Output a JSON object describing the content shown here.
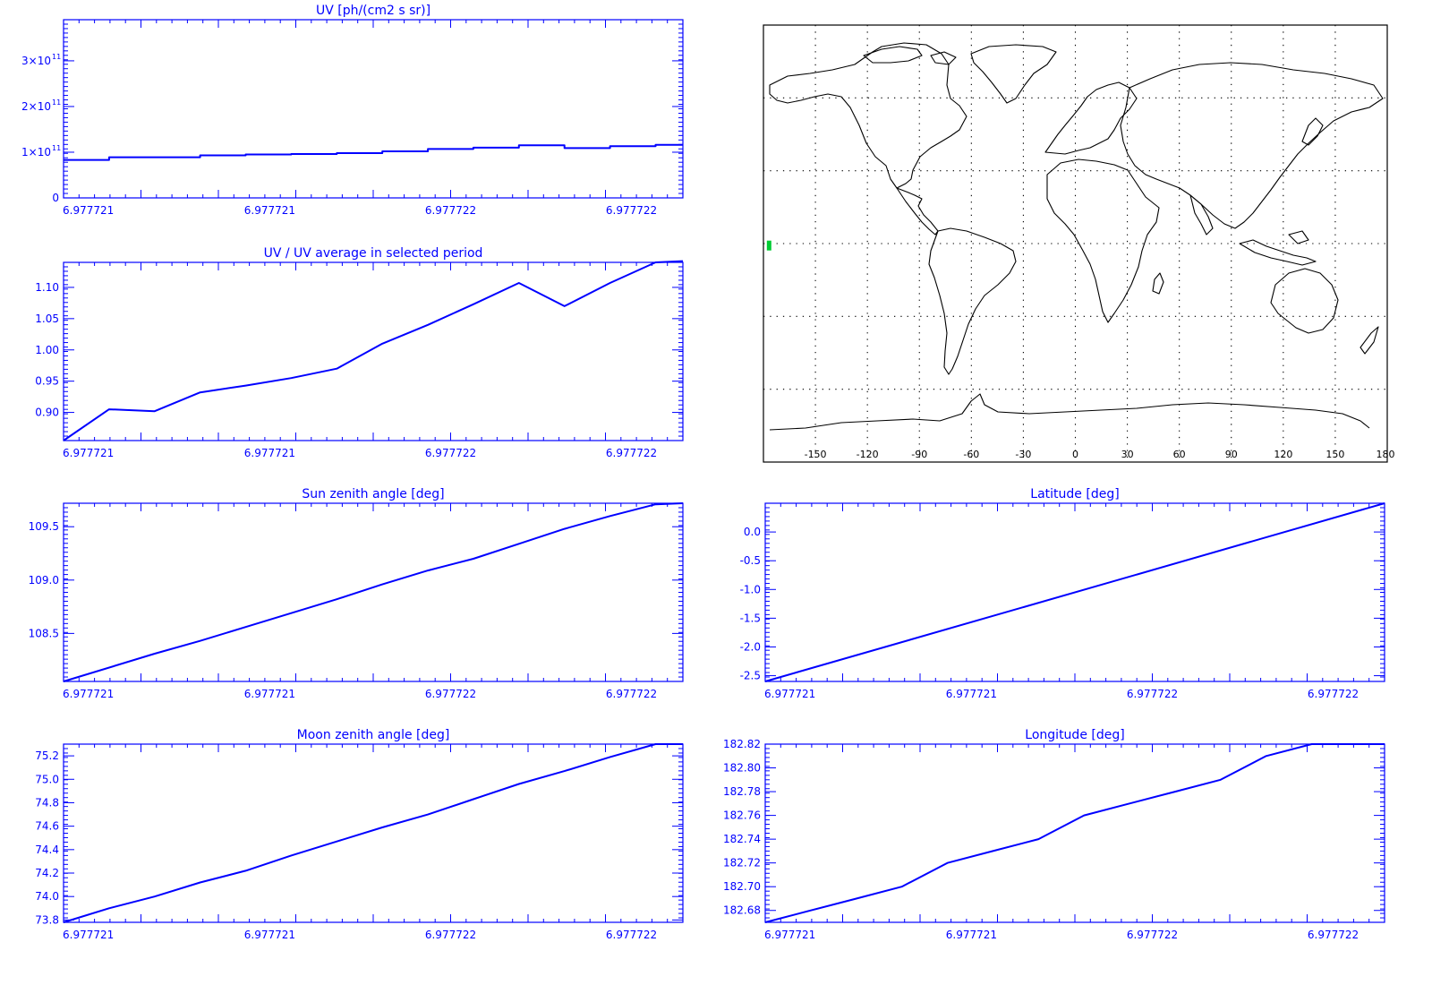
{
  "chart_data": [
    {
      "id": "uv",
      "type": "line",
      "step": true,
      "title": "UV [ph/(cm2 s sr)]",
      "x": [
        0,
        0.5,
        1,
        1.5,
        2,
        2.5,
        3,
        3.5,
        4,
        4.5,
        5,
        5.5,
        6,
        6.5
      ],
      "values": [
        83000000000.0,
        89000000000.0,
        89000000000.0,
        93000000000.0,
        95000000000.0,
        96000000000.0,
        98000000000.0,
        102000000000.0,
        107000000000.0,
        110000000000.0,
        115000000000.0,
        109000000000.0,
        113000000000.0,
        116000000000.0
      ],
      "xlim": [
        0,
        6.8
      ],
      "ylim": [
        0,
        390000000000.0
      ],
      "yticks": [
        {
          "value": 0,
          "label": "0"
        },
        {
          "value": 100000000000.0,
          "label": "1×10",
          "exp": "11"
        },
        {
          "value": 200000000000.0,
          "label": "2×10",
          "exp": "11"
        },
        {
          "value": 300000000000.0,
          "label": "3×10",
          "exp": "11"
        }
      ],
      "xtick_labels": [
        "6.977721",
        "6.977721",
        "6.977722",
        "6.977722"
      ]
    },
    {
      "id": "uv-ratio",
      "type": "line",
      "title": "UV / UV average in selected period",
      "x": [
        0,
        0.5,
        1,
        1.5,
        2,
        2.5,
        3,
        3.5,
        4,
        4.5,
        5,
        5.5,
        6,
        6.5,
        6.8
      ],
      "values": [
        0.855,
        0.905,
        0.902,
        0.932,
        0.943,
        0.955,
        0.97,
        1.01,
        1.04,
        1.073,
        1.107,
        1.07,
        1.107,
        1.14,
        1.142
      ],
      "xlim": [
        0,
        6.8
      ],
      "ylim": [
        0.855,
        1.14
      ],
      "yticks": [
        {
          "value": 0.9,
          "label": "0.90"
        },
        {
          "value": 0.95,
          "label": "0.95"
        },
        {
          "value": 1.0,
          "label": "1.00"
        },
        {
          "value": 1.05,
          "label": "1.05"
        },
        {
          "value": 1.1,
          "label": "1.10"
        }
      ],
      "xtick_labels": [
        "6.977721",
        "6.977721",
        "6.977722",
        "6.977722"
      ]
    },
    {
      "id": "sun-zenith",
      "type": "line",
      "title": "Sun zenith angle [deg]",
      "x": [
        0,
        1,
        1.5,
        2,
        2.5,
        3,
        3.5,
        4,
        4.5,
        5,
        5.5,
        6,
        6.5,
        6.8
      ],
      "values": [
        108.05,
        108.31,
        108.43,
        108.56,
        108.69,
        108.82,
        108.96,
        109.09,
        109.2,
        109.34,
        109.48,
        109.6,
        109.71,
        109.72
      ],
      "xlim": [
        0,
        6.8
      ],
      "ylim": [
        108.05,
        109.72
      ],
      "yticks": [
        {
          "value": 108.5,
          "label": "108.5"
        },
        {
          "value": 109.0,
          "label": "109.0"
        },
        {
          "value": 109.5,
          "label": "109.5"
        }
      ],
      "xtick_labels": [
        "6.977721",
        "6.977721",
        "6.977722",
        "6.977722"
      ]
    },
    {
      "id": "latitude",
      "type": "line",
      "title": "Latitude [deg]",
      "x": [
        0,
        6.8
      ],
      "values": [
        -2.6,
        0.5
      ],
      "xlim": [
        0,
        6.8
      ],
      "ylim": [
        -2.6,
        0.5
      ],
      "yticks": [
        {
          "value": -2.5,
          "label": "-2.5"
        },
        {
          "value": -2.0,
          "label": "-2.0"
        },
        {
          "value": -1.5,
          "label": "-1.5"
        },
        {
          "value": -1.0,
          "label": "-1.0"
        },
        {
          "value": -0.5,
          "label": "-0.5"
        },
        {
          "value": 0.0,
          "label": "0.0"
        }
      ],
      "xtick_labels": [
        "6.977721",
        "6.977721",
        "6.977722",
        "6.977722"
      ]
    },
    {
      "id": "moon-zenith",
      "type": "line",
      "title": "Moon zenith angle [deg]",
      "x": [
        0,
        0.5,
        1,
        1.5,
        2,
        2.5,
        3,
        3.5,
        4,
        4.5,
        5,
        5.5,
        6,
        6.5,
        6.8
      ],
      "values": [
        73.78,
        73.9,
        74.0,
        74.12,
        74.22,
        74.35,
        74.47,
        74.59,
        74.7,
        74.83,
        74.96,
        75.07,
        75.19,
        75.3,
        75.3
      ],
      "xlim": [
        0,
        6.8
      ],
      "ylim": [
        73.78,
        75.3
      ],
      "yticks": [
        {
          "value": 73.8,
          "label": "73.8"
        },
        {
          "value": 74.0,
          "label": "74.0"
        },
        {
          "value": 74.2,
          "label": "74.2"
        },
        {
          "value": 74.4,
          "label": "74.4"
        },
        {
          "value": 74.6,
          "label": "74.6"
        },
        {
          "value": 74.8,
          "label": "74.8"
        },
        {
          "value": 75.0,
          "label": "75.0"
        },
        {
          "value": 75.2,
          "label": "75.2"
        }
      ],
      "xtick_labels": [
        "6.977721",
        "6.977721",
        "6.977722",
        "6.977722"
      ]
    },
    {
      "id": "longitude",
      "type": "line",
      "title": "Longitude [deg]",
      "x": [
        0,
        0.5,
        1,
        1.5,
        2,
        2.5,
        3,
        3.5,
        4,
        4.5,
        5,
        5.5,
        6,
        6.5,
        6.8
      ],
      "values": [
        182.67,
        182.68,
        182.69,
        182.7,
        182.72,
        182.73,
        182.74,
        182.76,
        182.77,
        182.78,
        182.79,
        182.81,
        182.82,
        182.82,
        182.82
      ],
      "xlim": [
        0,
        6.8
      ],
      "ylim": [
        182.67,
        182.82
      ],
      "yticks": [
        {
          "value": 182.68,
          "label": "182.68"
        },
        {
          "value": 182.7,
          "label": "182.70"
        },
        {
          "value": 182.72,
          "label": "182.72"
        },
        {
          "value": 182.74,
          "label": "182.74"
        },
        {
          "value": 182.76,
          "label": "182.76"
        },
        {
          "value": 182.78,
          "label": "182.78"
        },
        {
          "value": 182.8,
          "label": "182.80"
        },
        {
          "value": 182.82,
          "label": "182.82"
        }
      ],
      "xtick_labels": [
        "6.977721",
        "6.977721",
        "6.977722",
        "6.977722"
      ]
    }
  ],
  "map": {
    "type": "map",
    "projection": "equirectangular",
    "lon_range": [
      -180,
      180
    ],
    "lat_range": [
      -90,
      90
    ],
    "grid": "dotted",
    "lon_tick_labels": [
      "-150",
      "-120",
      "-90",
      "-60",
      "-30",
      "0",
      "30",
      "60",
      "90",
      "120",
      "150",
      "180"
    ],
    "track_marker": {
      "lon": -177,
      "lat": -1,
      "color": "#00cc33"
    },
    "frame_color": "#000000"
  },
  "colors": {
    "plot": "#0000ff",
    "map": "#000000",
    "track": "#00cc33"
  }
}
